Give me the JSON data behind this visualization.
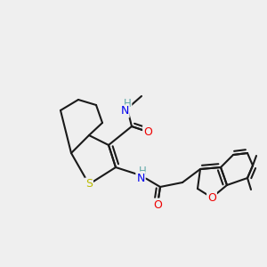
{
  "background_color": "#efefef",
  "bond_color": "#1a1a1a",
  "atom_colors": {
    "N": "#0000ee",
    "O": "#ee0000",
    "S": "#bbbb00",
    "H_label": "#5fa8a8",
    "C": "#1a1a1a"
  },
  "figsize": [
    3.0,
    3.0
  ],
  "dpi": 100
}
